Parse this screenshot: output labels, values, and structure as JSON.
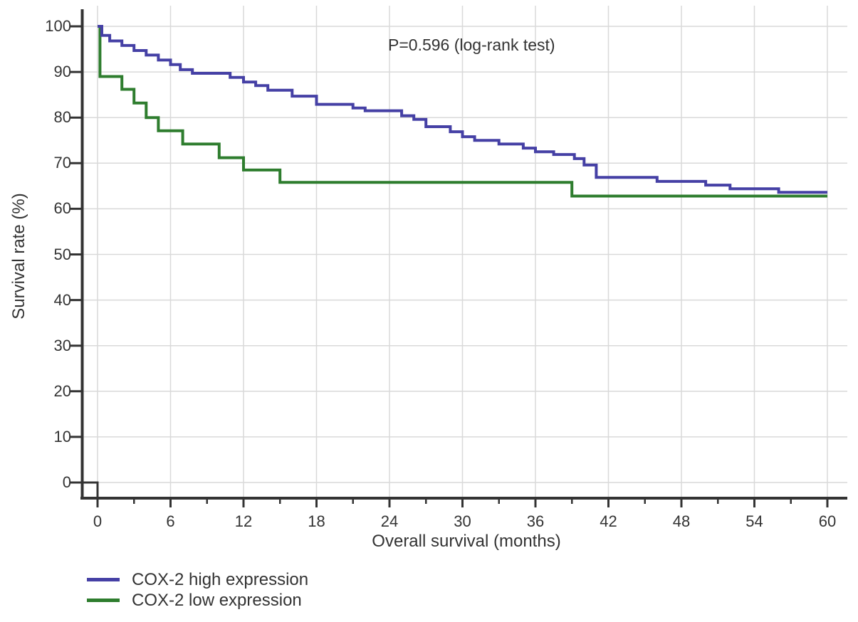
{
  "chart_data": {
    "type": "line",
    "variant": "kaplan_meier_step",
    "title": "",
    "annotation": "P=0.596 (log-rank test)",
    "xlabel": "Overall survival (months)",
    "ylabel": "Survival rate (%)",
    "xlim": [
      0,
      60
    ],
    "ylim": [
      0,
      100
    ],
    "x_major_ticks": [
      0,
      6,
      12,
      18,
      24,
      30,
      36,
      42,
      48,
      54,
      60
    ],
    "x_minor_ticks": [
      3,
      9,
      15,
      21,
      27,
      33,
      39,
      45,
      51,
      57
    ],
    "y_ticks": [
      0,
      10,
      20,
      30,
      40,
      50,
      60,
      70,
      80,
      90,
      100
    ],
    "grid": true,
    "legend_position": "below-left",
    "series": [
      {
        "name": "COX-2 high expression",
        "color": "#4540a5",
        "x": [
          0,
          0.35,
          1,
          2,
          3,
          4,
          5,
          6,
          6.8,
          7.8,
          10.9,
          12,
          13,
          14,
          16,
          18,
          21,
          22,
          25,
          26,
          27,
          29,
          30,
          31,
          33,
          35,
          36,
          37.5,
          39.2,
          40,
          41,
          46,
          50,
          52,
          56,
          60
        ],
        "y": [
          100,
          98,
          96.8,
          95.8,
          94.7,
          93.7,
          92.6,
          91.6,
          90.5,
          89.7,
          88.8,
          87.8,
          87,
          86,
          84.7,
          82.9,
          82.1,
          81.5,
          80.4,
          79.6,
          78,
          76.9,
          75.8,
          75,
          74.2,
          73.3,
          72.5,
          71.9,
          71,
          69.6,
          66.9,
          66,
          65.2,
          64.4,
          63.6,
          63.6
        ]
      },
      {
        "name": "COX-2 low expression",
        "color": "#2e7d2e",
        "x": [
          0,
          0.2,
          2,
          3,
          4,
          5,
          7,
          10,
          12,
          15,
          39,
          60
        ],
        "y": [
          100,
          89,
          86.2,
          83.2,
          80,
          77.1,
          74.2,
          71.2,
          68.5,
          65.8,
          62.8,
          62.8
        ]
      }
    ]
  },
  "colors": {
    "background": "#ffffff",
    "axis": "#333333",
    "grid": "#d9d9d9",
    "text": "#333333"
  }
}
